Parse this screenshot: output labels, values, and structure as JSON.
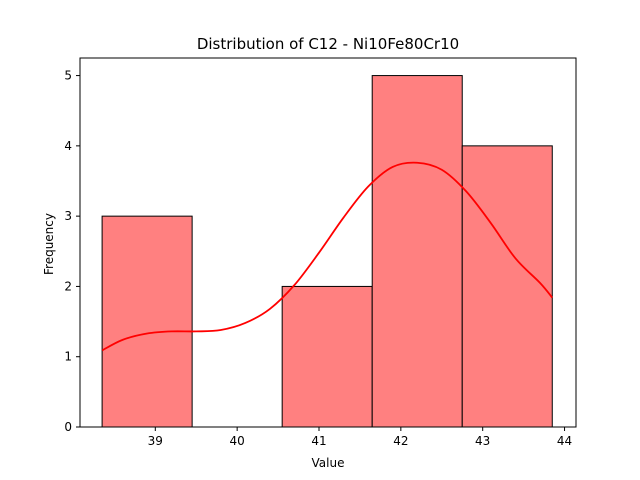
{
  "chart_data": {
    "type": "bar",
    "title": "Distribution of C12 - Ni10Fe80Cr10",
    "xlabel": "Value",
    "ylabel": "Frequency",
    "xlim": [
      38.08,
      44.14
    ],
    "ylim": [
      0,
      5.25
    ],
    "xticks": [
      39,
      40,
      41,
      42,
      43,
      44
    ],
    "yticks": [
      0,
      1,
      2,
      3,
      4,
      5
    ],
    "bins": [
      {
        "x0": 38.35,
        "x1": 39.45,
        "count": 3
      },
      {
        "x0": 39.45,
        "x1": 40.55,
        "count": 0
      },
      {
        "x0": 40.55,
        "x1": 41.65,
        "count": 2
      },
      {
        "x0": 41.65,
        "x1": 42.75,
        "count": 5
      },
      {
        "x0": 42.75,
        "x1": 43.85,
        "count": 4
      }
    ],
    "kde": {
      "x": [
        38.35,
        38.6,
        38.9,
        39.2,
        39.5,
        39.8,
        40.1,
        40.4,
        40.7,
        41.0,
        41.3,
        41.6,
        41.9,
        42.2,
        42.5,
        42.8,
        43.1,
        43.4,
        43.7,
        43.85
      ],
      "y": [
        1.09,
        1.24,
        1.33,
        1.36,
        1.36,
        1.38,
        1.48,
        1.68,
        2.02,
        2.48,
        2.98,
        3.42,
        3.7,
        3.76,
        3.66,
        3.35,
        2.9,
        2.4,
        2.05,
        1.84
      ]
    },
    "grid": false,
    "colors": {
      "bar_fill": "#ff8080",
      "bar_edge": "#000000",
      "kde_line": "#ff0000"
    }
  }
}
